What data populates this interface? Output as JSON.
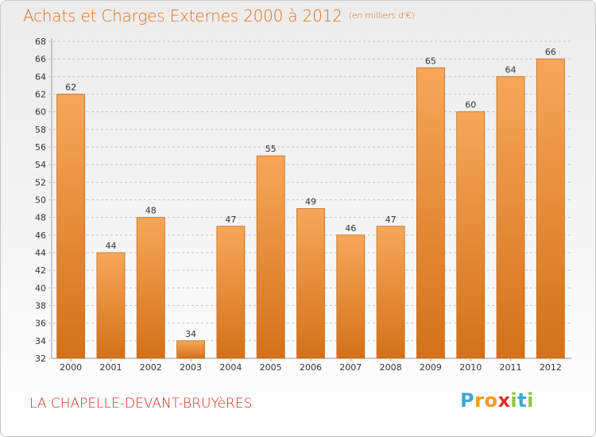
{
  "title": "Achats et Charges Externes 2000 à 2012",
  "unit": "(en milliers d'€)",
  "location": "LA CHAPELLE-DEVANT-BRUYèRES",
  "logo": {
    "letters": [
      "P",
      "r",
      "o",
      "x",
      "i",
      "t",
      "i"
    ],
    "colors": [
      "#3ea6d8",
      "#f39a1e",
      "#f39a1e",
      "#e0312a",
      "#8cc63e",
      "#3ea6d8",
      "#8cc63e"
    ]
  },
  "colors": {
    "bar_top": "#f7a75a",
    "bar_bottom": "#d2721a",
    "bar_stroke": "#c7691c",
    "grid": "#c8c8c8",
    "text": "#333333"
  },
  "chart_data": {
    "type": "bar",
    "categories": [
      "2000",
      "2001",
      "2002",
      "2003",
      "2004",
      "2005",
      "2006",
      "2007",
      "2008",
      "2009",
      "2010",
      "2011",
      "2012"
    ],
    "values": [
      62,
      44,
      48,
      34,
      47,
      55,
      49,
      46,
      47,
      65,
      60,
      64,
      66
    ],
    "ylim": [
      32,
      68
    ],
    "ytick_step": 2,
    "grid": true,
    "grid_style": "dashed-horizontal"
  }
}
